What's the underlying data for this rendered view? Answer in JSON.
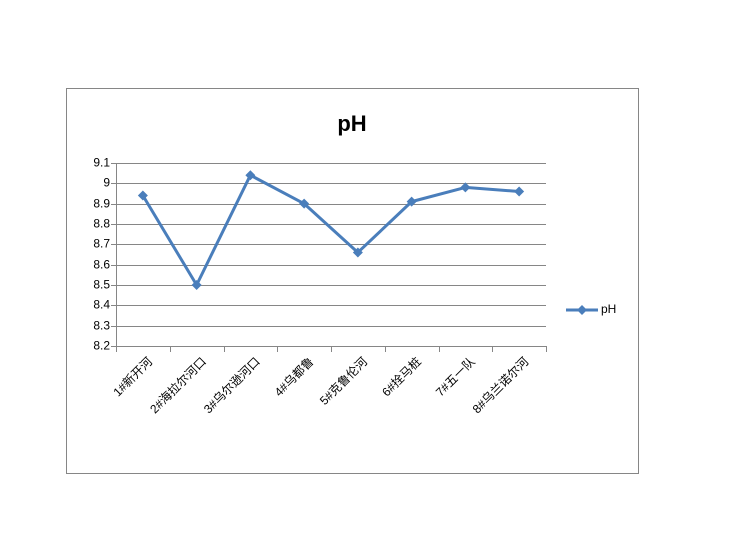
{
  "chart_data": {
    "type": "line",
    "title": "pH",
    "categories": [
      "1#新开河",
      "2#海拉尔河口",
      "3#乌尔逊河口",
      "4#乌都鲁",
      "5#克鲁伦河",
      "6#拴马桩",
      "7#五一队",
      "8#乌兰诺尔河"
    ],
    "series": [
      {
        "name": "pH",
        "color": "#4a7ebb",
        "values": [
          8.94,
          8.5,
          9.04,
          8.9,
          8.66,
          8.91,
          8.98,
          8.96
        ]
      }
    ],
    "ylim": [
      8.2,
      9.1
    ],
    "yticks": [
      8.2,
      8.3,
      8.4,
      8.5,
      8.6,
      8.7,
      8.8,
      8.9,
      9,
      9.1
    ],
    "grid": true,
    "legend": "right"
  }
}
